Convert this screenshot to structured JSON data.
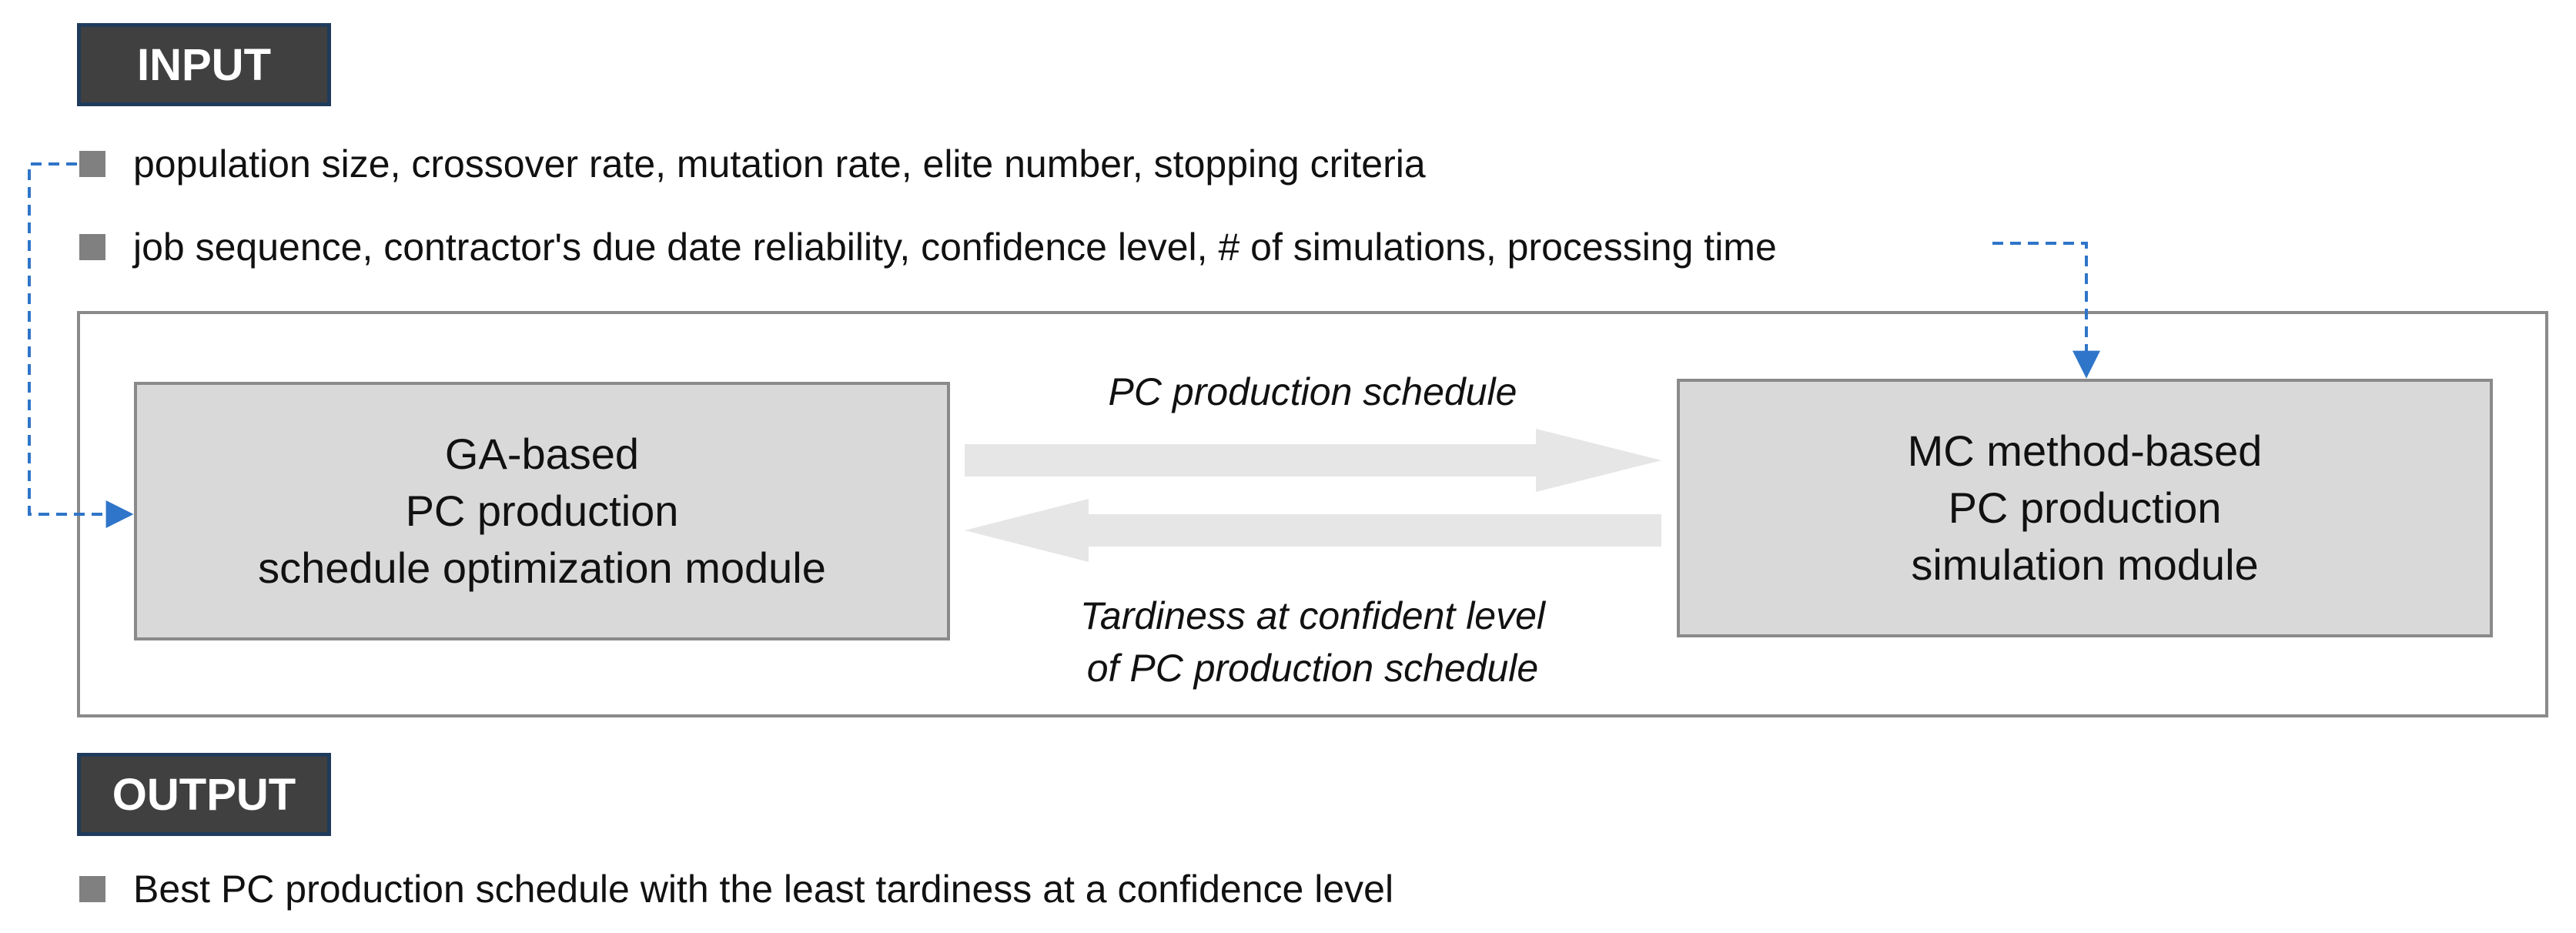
{
  "input": {
    "header": "INPUT",
    "ga_parameters": "population size, crossover rate, mutation rate, elite number,  stopping criteria",
    "mc_parameters": "job sequence, contractor's due date reliability, confidence level, # of simulations, processing time"
  },
  "modules": {
    "ga": {
      "line1": "GA-based",
      "line2": "PC production",
      "line3": "schedule  optimization  module"
    },
    "mc": {
      "line1": "MC method-based",
      "line2": "PC production",
      "line3": "simulation  module"
    }
  },
  "flows": {
    "forward_label": "PC production schedule",
    "backward_label_line1": "Tardiness at confident level",
    "backward_label_line2": "of PC production schedule"
  },
  "output": {
    "header": "OUTPUT",
    "result": "Best PC production schedule with the least tardiness at a confidence level"
  },
  "colors": {
    "header_fill": "#404040",
    "header_border": "#1f3b5c",
    "module_fill": "#d9d9d9",
    "frame_stroke": "#8a8a8a",
    "flow_arrow_fill": "#e6e6e6",
    "connector_blue": "#2f75c9",
    "bullet": "#808080"
  }
}
